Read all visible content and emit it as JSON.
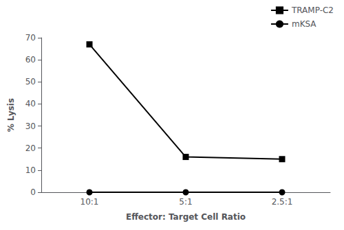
{
  "chart_data": {
    "type": "line",
    "categories": [
      "10:1",
      "5:1",
      "2.5:1"
    ],
    "series": [
      {
        "name": "TRAMP-C2",
        "color": "#000000",
        "marker": "square",
        "values": [
          67,
          16,
          15
        ]
      },
      {
        "name": "mKSA",
        "color": "#000000",
        "marker": "circle",
        "values": [
          0,
          0,
          0
        ]
      }
    ],
    "xlabel": "Effector: Target Cell Ratio",
    "ylabel": "% Lysis",
    "ylim": [
      0,
      70
    ],
    "yticks": [
      0,
      10,
      20,
      30,
      40,
      50,
      60,
      70
    ],
    "grid": false,
    "legend": "upper right"
  }
}
